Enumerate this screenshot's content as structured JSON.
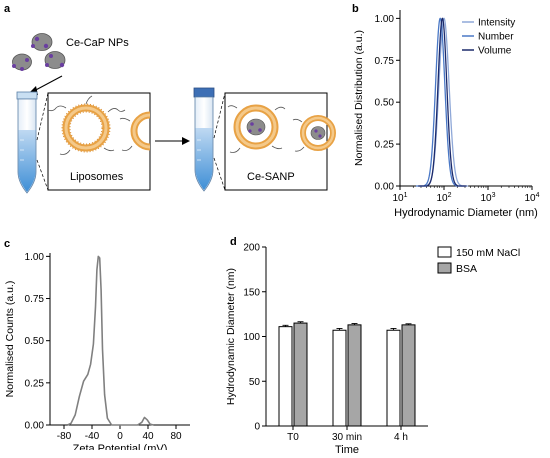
{
  "panels": {
    "a": {
      "label": "a",
      "np_label": "Ce-CaP NPs",
      "liposome_label": "Liposomes",
      "sanp_label": "Ce-SANP"
    },
    "b": {
      "label": "b"
    },
    "c": {
      "label": "c"
    },
    "d": {
      "label": "d"
    }
  },
  "chart_data": [
    {
      "panel": "b",
      "type": "line",
      "xlabel": "Hydrodynamic Diameter (nm)",
      "ylabel": "Normalised Distribution (a.u.)",
      "xscale": "log",
      "xlim": [
        10,
        10000
      ],
      "ylim": [
        0,
        1.05
      ],
      "x_ticks": [
        "10",
        "100",
        "1000",
        "10000"
      ],
      "x_tick_labels": [
        "10^1",
        "10^2",
        "10^3",
        "10^4"
      ],
      "y_ticks": [
        "0.00",
        "0.25",
        "0.50",
        "0.75",
        "1.00"
      ],
      "legend_position": "top-right",
      "grid": false,
      "series": [
        {
          "name": "Intensity",
          "color": "#8fa8d8",
          "mode": 100,
          "width": 0.115
        },
        {
          "name": "Number",
          "color": "#4a78c6",
          "mode": 82,
          "width": 0.105
        },
        {
          "name": "Volume",
          "color": "#1c2a6b",
          "mode": 92,
          "width": 0.1
        }
      ]
    },
    {
      "panel": "c",
      "type": "line",
      "xlabel": "Zeta Potential (mV)",
      "ylabel": "Normalised Counts (a.u.)",
      "xlim": [
        -100,
        100
      ],
      "ylim": [
        0,
        1.02
      ],
      "x_ticks": [
        "-80",
        "-40",
        "0",
        "40",
        "80"
      ],
      "y_ticks": [
        "0.00",
        "0.25",
        "0.50",
        "0.75",
        "1.00"
      ],
      "grid": false,
      "series": [
        {
          "name": "",
          "color": "#808080",
          "points": [
            [
              -75,
              0.0
            ],
            [
              -70,
              0.01
            ],
            [
              -64,
              0.06
            ],
            [
              -58,
              0.17
            ],
            [
              -52,
              0.26
            ],
            [
              -46,
              0.3
            ],
            [
              -42,
              0.36
            ],
            [
              -38,
              0.48
            ],
            [
              -35,
              0.7
            ],
            [
              -33,
              0.92
            ],
            [
              -31,
              1.0
            ],
            [
              -29,
              0.99
            ],
            [
              -27,
              0.8
            ],
            [
              -25,
              0.45
            ],
            [
              -22,
              0.18
            ],
            [
              -18,
              0.04
            ],
            [
              -12,
              0.0
            ],
            [
              25,
              0.0
            ],
            [
              31,
              0.015
            ],
            [
              35,
              0.045
            ],
            [
              39,
              0.03
            ],
            [
              43,
              0.005
            ],
            [
              48,
              0.0
            ]
          ]
        }
      ]
    },
    {
      "panel": "d",
      "type": "bar",
      "xlabel": "Time",
      "ylabel": "Hydrodynamic Diameter (nm)",
      "ylim": [
        0,
        200
      ],
      "y_ticks": [
        "0",
        "50",
        "100",
        "150",
        "200"
      ],
      "categories": [
        "T0",
        "30 min",
        "4 h"
      ],
      "legend_position": "top-right",
      "series": [
        {
          "name": "150 mM NaCl",
          "color": "#ffffff",
          "values": [
            111,
            107,
            107
          ],
          "errors": [
            1.5,
            2.0,
            2.0
          ]
        },
        {
          "name": "BSA",
          "color": "#a6a6a6",
          "values": [
            115,
            113,
            113
          ],
          "errors": [
            1.5,
            1.5,
            1.2
          ]
        }
      ]
    }
  ]
}
